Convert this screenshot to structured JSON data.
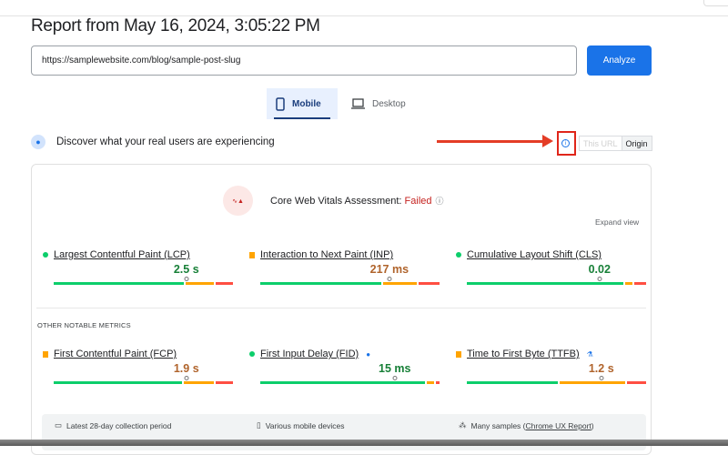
{
  "header": {
    "title": "Report from May 16, 2024, 3:05:22 PM"
  },
  "search": {
    "url_value": "https://samplewebsite.com/blog/sample-post-slug",
    "analyze_label": "Analyze"
  },
  "tabs": [
    {
      "label": "Mobile",
      "icon": "phone-icon",
      "active": true
    },
    {
      "label": "Desktop",
      "icon": "laptop-icon",
      "active": false
    }
  ],
  "field": {
    "heading": "Discover what your real users are experiencing",
    "toggle": {
      "this_url": "This URL",
      "origin": "Origin",
      "selected": "Origin"
    }
  },
  "annotation": {
    "arrow_color": "#e43d26",
    "box_color": "#e0261a"
  },
  "assessment": {
    "label": "Core Web Vitals Assessment: ",
    "status": "Failed",
    "status_color": "#c5221f",
    "expand": "Expand view"
  },
  "core_metrics": [
    {
      "label": "Largest Contentful Paint (LCP)",
      "value": "2.5 s",
      "rating": "good",
      "distribution": {
        "good": 74,
        "needs_improvement": 16,
        "poor": 10
      },
      "p75_position": 74
    },
    {
      "label": "Interaction to Next Paint (INP)",
      "value": "217 ms",
      "rating": "needs-improvement",
      "distribution": {
        "good": 69,
        "needs_improvement": 19,
        "poor": 12
      },
      "p75_position": 72
    },
    {
      "label": "Cumulative Layout Shift (CLS)",
      "value": "0.02",
      "rating": "good",
      "distribution": {
        "good": 89,
        "needs_improvement": 4,
        "poor": 7
      },
      "p75_position": 74
    }
  ],
  "other_heading": "OTHER NOTABLE METRICS",
  "other_metrics": [
    {
      "label": "First Contentful Paint (FCP)",
      "value": "1.9 s",
      "rating": "needs-improvement",
      "distribution": {
        "good": 73,
        "needs_improvement": 17,
        "poor": 10
      },
      "p75_position": 74
    },
    {
      "label": "First Input Delay (FID)",
      "value": "15 ms",
      "rating": "good",
      "distribution": {
        "good": 94,
        "needs_improvement": 4,
        "poor": 2
      },
      "p75_position": 75,
      "extra_icon": "info-icon"
    },
    {
      "label": "Time to First Byte (TTFB)",
      "value": "1.2 s",
      "rating": "needs-improvement",
      "distribution": {
        "good": 52,
        "needs_improvement": 37,
        "poor": 11
      },
      "p75_position": 75,
      "extra_icon": "flask-icon"
    }
  ],
  "footer": {
    "period": "Latest 28-day collection period",
    "devices": "Various mobile devices",
    "samples": "Many samples (",
    "samples_link": "Chrome UX Report",
    "samples_end": ")"
  },
  "colors": {
    "good": "#0cce6b",
    "needs_improvement": "#ffa400",
    "poor": "#ff4e42",
    "accent": "#1a73e8"
  }
}
